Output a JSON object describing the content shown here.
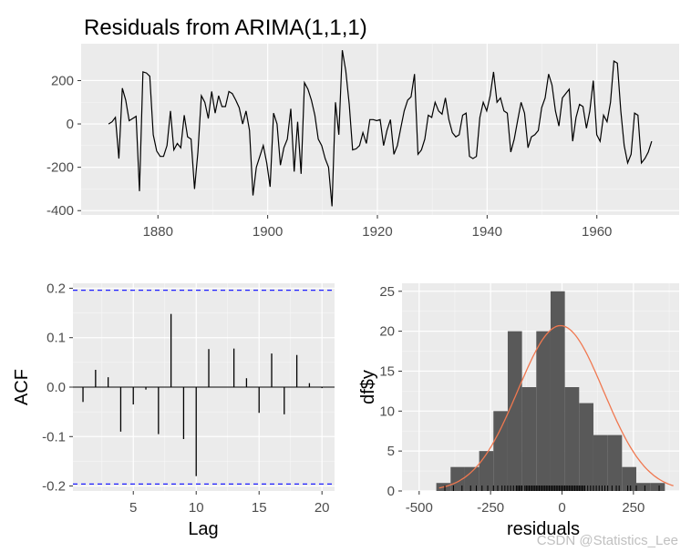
{
  "title": "Residuals from ARIMA(1,1,1)",
  "watermark": "CSDN @Statistics_Lee",
  "chart_data": [
    {
      "type": "line",
      "title": "Residuals from ARIMA(1,1,1)",
      "xlabel": "",
      "ylabel": "",
      "xlim": [
        1866,
        1975
      ],
      "ylim": [
        -420,
        370
      ],
      "x_ticks": [
        1880,
        1900,
        1920,
        1940,
        1960
      ],
      "y_ticks": [
        -400,
        -200,
        0,
        200
      ],
      "grid": true,
      "x_start": 1871,
      "x_step": 1,
      "values": [
        0,
        10,
        30,
        -160,
        165,
        110,
        15,
        25,
        35,
        -310,
        240,
        235,
        220,
        -50,
        -125,
        -150,
        -150,
        -100,
        60,
        -120,
        -90,
        -110,
        40,
        -60,
        -70,
        -300,
        -130,
        130,
        100,
        25,
        150,
        50,
        130,
        80,
        80,
        150,
        140,
        110,
        75,
        0,
        60,
        -30,
        -330,
        -200,
        -150,
        -100,
        -180,
        -290,
        50,
        0,
        -190,
        -110,
        -70,
        70,
        -220,
        10,
        -230,
        190,
        160,
        110,
        40,
        -70,
        -100,
        -160,
        -200,
        -380,
        100,
        -50,
        340,
        245,
        90,
        -120,
        -115,
        -100,
        -40,
        -90,
        20,
        20,
        15,
        20,
        -100,
        -30,
        20,
        -140,
        -100,
        -20,
        60,
        110,
        125,
        230,
        -140,
        -120,
        -70,
        40,
        30,
        100,
        60,
        45,
        120,
        20,
        -40,
        -60,
        -50,
        40,
        50,
        -150,
        -160,
        -150,
        30,
        100,
        60,
        130,
        240,
        100,
        120,
        60,
        50,
        -130,
        -70,
        15,
        100,
        50,
        -110,
        -60,
        -50,
        -30,
        75,
        120,
        230,
        180,
        60,
        -10,
        120,
        140,
        160,
        -80,
        30,
        90,
        80,
        -20,
        60,
        200,
        -50,
        -80,
        40,
        10,
        100,
        290,
        280,
        60,
        -100,
        -180,
        -140,
        50,
        40,
        -180,
        -160,
        -130,
        -80
      ],
      "series_note_ignore": ""
    },
    {
      "type": "bar",
      "title": "",
      "xlabel": "Lag",
      "ylabel": "ACF",
      "xlim": [
        0.2,
        21
      ],
      "ylim": [
        -0.21,
        0.21
      ],
      "x_ticks": [
        5,
        10,
        15,
        20
      ],
      "y_ticks": [
        -0.2,
        -0.1,
        0.0,
        0.1,
        0.2
      ],
      "y_tick_labels": [
        "-0.2",
        "-0.1",
        "0.0",
        "0.1",
        "0.2"
      ],
      "grid": true,
      "lags": [
        1,
        2,
        3,
        4,
        5,
        6,
        7,
        8,
        9,
        10,
        11,
        12,
        13,
        14,
        15,
        16,
        17,
        18,
        19,
        20
      ],
      "values": [
        -0.03,
        0.035,
        0.02,
        -0.09,
        -0.035,
        -0.005,
        -0.095,
        0.148,
        -0.105,
        -0.18,
        0.077,
        0.0,
        0.078,
        0.018,
        -0.052,
        0.068,
        -0.055,
        0.065,
        0.008,
        -0.002
      ],
      "confidence_bounds": [
        -0.196,
        0.196
      ],
      "bound_color": "#1f1fff"
    },
    {
      "type": "histogram",
      "title": "",
      "xlabel": "residuals",
      "ylabel": "df$y",
      "xlim": [
        -560,
        410
      ],
      "ylim": [
        0,
        26
      ],
      "x_ticks": [
        -500,
        -250,
        0,
        250
      ],
      "y_ticks": [
        0,
        5,
        10,
        15,
        20,
        25
      ],
      "grid": true,
      "bins": [
        {
          "x0": -440,
          "x1": -390,
          "count": 1
        },
        {
          "x0": -390,
          "x1": -340,
          "count": 3
        },
        {
          "x0": -340,
          "x1": -290,
          "count": 3
        },
        {
          "x0": -290,
          "x1": -240,
          "count": 5
        },
        {
          "x0": -240,
          "x1": -190,
          "count": 10
        },
        {
          "x0": -190,
          "x1": -140,
          "count": 20
        },
        {
          "x0": -140,
          "x1": -90,
          "count": 13
        },
        {
          "x0": -90,
          "x1": -40,
          "count": 20
        },
        {
          "x0": -40,
          "x1": 10,
          "count": 25
        },
        {
          "x0": 10,
          "x1": 60,
          "count": 13
        },
        {
          "x0": 60,
          "x1": 110,
          "count": 11
        },
        {
          "x0": 110,
          "x1": 160,
          "count": 7
        },
        {
          "x0": 160,
          "x1": 210,
          "count": 7
        },
        {
          "x0": 210,
          "x1": 260,
          "count": 3
        },
        {
          "x0": 260,
          "x1": 310,
          "count": 1
        },
        {
          "x0": 310,
          "x1": 360,
          "count": 1
        }
      ],
      "normal_curve": {
        "mean": -5,
        "peak": 20.7,
        "sd": 150,
        "color": "#f07850"
      },
      "rug": [
        -410,
        -380,
        -350,
        -320,
        -300,
        -280,
        -260,
        -240,
        -225,
        -210,
        -200,
        -190,
        -180,
        -170,
        -160,
        -155,
        -150,
        -145,
        -140,
        -130,
        -125,
        -120,
        -115,
        -110,
        -105,
        -100,
        -95,
        -90,
        -85,
        -80,
        -75,
        -70,
        -65,
        -60,
        -55,
        -50,
        -45,
        -40,
        -35,
        -30,
        -25,
        -20,
        -15,
        -10,
        -5,
        0,
        5,
        10,
        15,
        20,
        25,
        30,
        35,
        40,
        45,
        50,
        55,
        60,
        65,
        70,
        75,
        80,
        90,
        100,
        110,
        120,
        130,
        140,
        150,
        160,
        175,
        190,
        200,
        230,
        240,
        260,
        290,
        340
      ]
    }
  ]
}
